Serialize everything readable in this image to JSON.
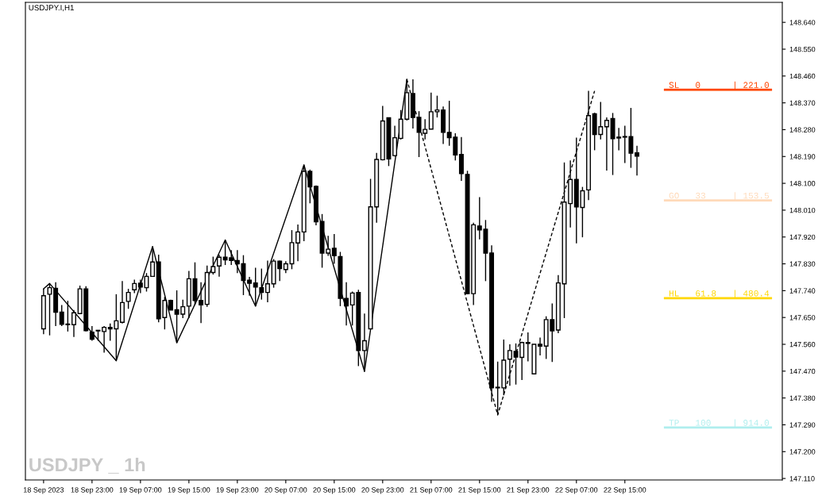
{
  "chart_data": {
    "type": "candlestick",
    "title": "USDJPY.I,H1",
    "annotations": [
      "USDJPY _ 1h"
    ],
    "x": [
      "2023-09-18T15:00",
      "2023-09-18T16:00",
      "2023-09-18T17:00",
      "2023-09-18T18:00",
      "2023-09-18T19:00",
      "2023-09-18T20:00",
      "2023-09-18T21:00",
      "2023-09-18T22:00",
      "2023-09-18T23:00",
      "2023-09-19T00:00",
      "2023-09-19T01:00",
      "2023-09-19T02:00",
      "2023-09-19T03:00",
      "2023-09-19T04:00",
      "2023-09-19T05:00",
      "2023-09-19T06:00",
      "2023-09-19T07:00",
      "2023-09-19T08:00",
      "2023-09-19T09:00",
      "2023-09-19T10:00",
      "2023-09-19T11:00",
      "2023-09-19T12:00",
      "2023-09-19T13:00",
      "2023-09-19T14:00",
      "2023-09-19T15:00",
      "2023-09-19T16:00",
      "2023-09-19T17:00",
      "2023-09-19T18:00",
      "2023-09-19T19:00",
      "2023-09-19T20:00",
      "2023-09-19T21:00",
      "2023-09-19T22:00",
      "2023-09-19T23:00",
      "2023-09-20T00:00",
      "2023-09-20T01:00",
      "2023-09-20T02:00",
      "2023-09-20T03:00",
      "2023-09-20T04:00",
      "2023-09-20T05:00",
      "2023-09-20T06:00",
      "2023-09-20T07:00",
      "2023-09-20T08:00",
      "2023-09-20T09:00",
      "2023-09-20T10:00",
      "2023-09-20T11:00",
      "2023-09-20T12:00",
      "2023-09-20T13:00",
      "2023-09-20T14:00",
      "2023-09-20T15:00",
      "2023-09-20T16:00",
      "2023-09-20T17:00",
      "2023-09-20T18:00",
      "2023-09-20T19:00",
      "2023-09-20T20:00",
      "2023-09-20T21:00",
      "2023-09-20T22:00",
      "2023-09-20T23:00",
      "2023-09-21T00:00",
      "2023-09-21T01:00",
      "2023-09-21T02:00",
      "2023-09-21T03:00",
      "2023-09-21T04:00",
      "2023-09-21T05:00",
      "2023-09-21T06:00",
      "2023-09-21T07:00",
      "2023-09-21T08:00",
      "2023-09-21T09:00",
      "2023-09-21T10:00",
      "2023-09-21T11:00",
      "2023-09-21T12:00",
      "2023-09-21T13:00",
      "2023-09-21T14:00",
      "2023-09-21T15:00",
      "2023-09-21T16:00",
      "2023-09-21T17:00",
      "2023-09-21T18:00",
      "2023-09-21T19:00",
      "2023-09-21T20:00",
      "2023-09-21T21:00",
      "2023-09-21T22:00",
      "2023-09-21T23:00",
      "2023-09-22T00:00",
      "2023-09-22T01:00",
      "2023-09-22T02:00",
      "2023-09-22T03:00",
      "2023-09-22T04:00",
      "2023-09-22T05:00",
      "2023-09-22T06:00",
      "2023-09-22T07:00",
      "2023-09-22T08:00",
      "2023-09-22T09:00",
      "2023-09-22T10:00",
      "2023-09-22T11:00",
      "2023-09-22T12:00",
      "2023-09-22T13:00",
      "2023-09-22T14:00",
      "2023-09-22T15:00",
      "2023-09-22T16:00",
      "2023-09-22T17:00"
    ],
    "ohlc": [
      [
        147.612,
        147.746,
        147.594,
        147.723
      ],
      [
        147.728,
        147.764,
        147.59,
        147.75
      ],
      [
        147.748,
        147.768,
        147.621,
        147.668
      ],
      [
        147.668,
        147.692,
        147.621,
        147.627
      ],
      [
        147.628,
        147.706,
        147.603,
        147.626
      ],
      [
        147.626,
        147.675,
        147.585,
        147.666
      ],
      [
        147.663,
        147.757,
        147.661,
        147.746
      ],
      [
        147.746,
        147.755,
        147.603,
        147.606
      ],
      [
        147.601,
        147.621,
        147.572,
        147.577
      ],
      [
        147.605,
        147.608,
        147.572,
        147.607
      ],
      [
        147.603,
        147.621,
        147.532,
        147.617
      ],
      [
        147.617,
        147.63,
        147.572,
        147.612
      ],
      [
        147.612,
        147.728,
        147.505,
        147.639
      ],
      [
        147.634,
        147.772,
        147.63,
        147.7
      ],
      [
        147.704,
        147.746,
        147.679,
        147.734
      ],
      [
        147.743,
        147.777,
        147.732,
        147.764
      ],
      [
        147.765,
        147.777,
        147.732,
        147.752
      ],
      [
        147.75,
        147.799,
        147.737,
        147.788
      ],
      [
        147.788,
        147.888,
        147.786,
        147.836
      ],
      [
        147.836,
        147.861,
        147.634,
        147.646
      ],
      [
        147.65,
        147.719,
        147.61,
        147.707
      ],
      [
        147.707,
        147.71,
        147.675,
        147.675
      ],
      [
        147.676,
        147.741,
        147.565,
        147.661
      ],
      [
        147.661,
        147.71,
        147.648,
        147.686
      ],
      [
        147.688,
        147.806,
        147.648,
        147.78
      ],
      [
        147.78,
        147.835,
        147.692,
        147.707
      ],
      [
        147.707,
        147.768,
        147.631,
        147.692
      ],
      [
        147.694,
        147.824,
        147.686,
        147.801
      ],
      [
        147.801,
        147.854,
        147.794,
        147.821
      ],
      [
        147.823,
        147.861,
        147.787,
        147.852
      ],
      [
        147.852,
        147.91,
        147.826,
        147.843
      ],
      [
        147.85,
        147.876,
        147.826,
        147.841
      ],
      [
        147.841,
        147.876,
        147.799,
        147.83
      ],
      [
        147.83,
        147.859,
        147.725,
        147.774
      ],
      [
        147.775,
        147.786,
        147.723,
        147.765
      ],
      [
        147.766,
        147.817,
        147.688,
        147.752
      ],
      [
        147.75,
        147.814,
        147.71,
        147.734
      ],
      [
        147.734,
        147.841,
        147.701,
        147.763
      ],
      [
        147.763,
        147.846,
        147.75,
        147.839
      ],
      [
        147.839,
        147.841,
        147.772,
        147.814
      ],
      [
        147.811,
        147.839,
        147.799,
        147.83
      ],
      [
        147.83,
        147.943,
        147.812,
        147.901
      ],
      [
        147.9,
        147.962,
        147.839,
        147.937
      ],
      [
        147.937,
        148.162,
        147.906,
        148.14
      ],
      [
        148.14,
        148.146,
        148.033,
        148.088
      ],
      [
        148.09,
        148.093,
        147.959,
        147.971
      ],
      [
        147.972,
        147.997,
        147.817,
        147.866
      ],
      [
        147.866,
        147.924,
        147.857,
        147.879
      ],
      [
        147.882,
        147.93,
        147.83,
        147.857
      ],
      [
        147.854,
        147.87,
        147.688,
        147.714
      ],
      [
        147.714,
        147.768,
        147.623,
        147.689
      ],
      [
        147.692,
        147.737,
        147.623,
        147.732
      ],
      [
        147.734,
        147.743,
        147.487,
        147.539
      ],
      [
        147.539,
        147.663,
        147.469,
        147.572
      ],
      [
        147.612,
        148.115,
        147.612,
        148.021
      ],
      [
        148.021,
        148.202,
        147.968,
        148.18
      ],
      [
        148.179,
        148.36,
        148.177,
        148.309
      ],
      [
        148.32,
        148.32,
        148.158,
        148.182
      ],
      [
        148.193,
        148.293,
        148.19,
        148.253
      ],
      [
        148.251,
        148.346,
        148.247,
        148.315
      ],
      [
        148.315,
        148.449,
        148.311,
        148.404
      ],
      [
        148.401,
        148.449,
        148.284,
        148.321
      ],
      [
        148.321,
        148.342,
        148.188,
        148.271
      ],
      [
        148.268,
        148.315,
        148.247,
        148.281
      ],
      [
        148.282,
        148.404,
        148.282,
        148.34
      ],
      [
        148.34,
        148.394,
        148.321,
        148.346
      ],
      [
        148.346,
        148.358,
        148.232,
        148.271
      ],
      [
        148.271,
        148.377,
        148.226,
        148.253
      ],
      [
        148.255,
        148.268,
        148.177,
        148.195
      ],
      [
        148.197,
        148.255,
        148.108,
        148.133
      ],
      [
        148.13,
        148.142,
        147.728,
        147.73
      ],
      [
        147.73,
        147.968,
        147.692,
        147.961
      ],
      [
        147.957,
        148.054,
        147.912,
        147.944
      ],
      [
        147.946,
        147.977,
        147.772,
        147.866
      ],
      [
        147.866,
        147.892,
        147.367,
        147.414
      ],
      [
        147.414,
        147.502,
        147.323,
        147.416
      ],
      [
        147.414,
        147.576,
        147.389,
        147.507
      ],
      [
        147.51,
        147.56,
        147.421,
        147.539
      ],
      [
        147.536,
        147.563,
        147.425,
        147.517
      ],
      [
        147.516,
        147.569,
        147.44,
        147.566
      ],
      [
        147.566,
        147.6,
        147.503,
        147.563
      ],
      [
        147.461,
        147.56,
        147.461,
        147.56
      ],
      [
        147.56,
        147.583,
        147.523,
        147.554
      ],
      [
        147.554,
        147.654,
        147.511,
        147.643
      ],
      [
        147.643,
        147.697,
        147.501,
        147.605
      ],
      [
        147.608,
        147.792,
        147.597,
        147.766
      ],
      [
        147.763,
        148.17,
        147.648,
        148.037
      ],
      [
        148.032,
        148.177,
        147.952,
        148.113
      ],
      [
        148.113,
        148.253,
        147.899,
        148.021
      ],
      [
        148.019,
        148.088,
        147.919,
        148.075
      ],
      [
        148.078,
        148.41,
        148.044,
        148.327
      ],
      [
        148.333,
        148.337,
        148.211,
        148.264
      ],
      [
        148.264,
        148.373,
        148.247,
        148.29
      ],
      [
        148.29,
        148.321,
        148.143,
        148.311
      ],
      [
        148.317,
        148.336,
        148.128,
        148.25
      ],
      [
        148.255,
        148.286,
        148.211,
        148.252
      ],
      [
        148.257,
        148.293,
        148.168,
        148.255
      ],
      [
        148.257,
        148.353,
        148.152,
        148.201
      ],
      [
        148.202,
        148.226,
        148.126,
        148.191
      ]
    ],
    "series": [
      {
        "type": "line",
        "color": "#000000",
        "line_style": "solid",
        "x": [
          "2023-09-18T15:00",
          "2023-09-18T16:00",
          "2023-09-19T03:00",
          "2023-09-19T09:00",
          "2023-09-19T13:00",
          "2023-09-19T21:00",
          "2023-09-20T02:00",
          "2023-09-20T10:00",
          "2023-09-20T20:00",
          "2023-09-21T03:00"
        ],
        "values": [
          147.746,
          147.764,
          147.505,
          147.888,
          147.565,
          147.91,
          147.688,
          148.162,
          147.469,
          148.449
        ]
      },
      {
        "type": "line",
        "color": "#000000",
        "line_style": "dashed",
        "x": [
          "2023-09-21T03:00",
          "2023-09-21T18:00",
          "2023-09-22T10:00"
        ],
        "values": [
          148.449,
          147.323,
          148.41
        ]
      }
    ],
    "ref_lines": [
      {
        "axis": "y",
        "value": 148.414,
        "label": "SL   0      | 221.0",
        "color": "#ff4500"
      },
      {
        "axis": "y",
        "value": 148.043,
        "label": "GO   33     | 153.5",
        "color": "#ffdab9"
      },
      {
        "axis": "y",
        "value": 147.715,
        "label": "HL   61.8   | 480.4",
        "color": "#ffd700"
      },
      {
        "axis": "y",
        "value": 147.281,
        "label": "TP   100    | 914.0",
        "color": "#afeeee"
      }
    ],
    "xlim": [
      "2023-09-18T12:00",
      "2023-09-23T17:00"
    ],
    "xticks": [
      {
        "value": "2023-09-18T15:00",
        "label": "18 Sep 2023"
      },
      {
        "value": "2023-09-18T23:00",
        "label": "18 Sep 23:00"
      },
      {
        "value": "2023-09-19T07:00",
        "label": "19 Sep 07:00"
      },
      {
        "value": "2023-09-19T15:00",
        "label": "19 Sep 15:00"
      },
      {
        "value": "2023-09-19T23:00",
        "label": "19 Sep 23:00"
      },
      {
        "value": "2023-09-20T07:00",
        "label": "20 Sep 07:00"
      },
      {
        "value": "2023-09-20T15:00",
        "label": "20 Sep 15:00"
      },
      {
        "value": "2023-09-20T23:00",
        "label": "20 Sep 23:00"
      },
      {
        "value": "2023-09-21T07:00",
        "label": "21 Sep 07:00"
      },
      {
        "value": "2023-09-21T15:00",
        "label": "21 Sep 15:00"
      },
      {
        "value": "2023-09-21T23:00",
        "label": "21 Sep 23:00"
      },
      {
        "value": "2023-09-22T07:00",
        "label": "22 Sep 07:00"
      },
      {
        "value": "2023-09-22T15:00",
        "label": "22 Sep 15:00"
      }
    ],
    "ylim": [
      147.105,
      148.707
    ],
    "yticks": [
      {
        "value": 147.11,
        "label": "147.110"
      },
      {
        "value": 147.2,
        "label": "147.200"
      },
      {
        "value": 147.29,
        "label": "147.290"
      },
      {
        "value": 147.38,
        "label": "147.380"
      },
      {
        "value": 147.47,
        "label": "147.470"
      },
      {
        "value": 147.56,
        "label": "147.560"
      },
      {
        "value": 147.65,
        "label": "147.650"
      },
      {
        "value": 147.74,
        "label": "147.740"
      },
      {
        "value": 147.83,
        "label": "147.830"
      },
      {
        "value": 147.92,
        "label": "147.920"
      },
      {
        "value": 148.01,
        "label": "148.010"
      },
      {
        "value": 148.1,
        "label": "148.100"
      },
      {
        "value": 148.19,
        "label": "148.190"
      },
      {
        "value": 148.28,
        "label": "148.280"
      },
      {
        "value": 148.37,
        "label": "148.370"
      },
      {
        "value": 148.46,
        "label": "148.460"
      },
      {
        "value": 148.55,
        "label": "148.550"
      },
      {
        "value": 148.64,
        "label": "148.640"
      }
    ]
  }
}
